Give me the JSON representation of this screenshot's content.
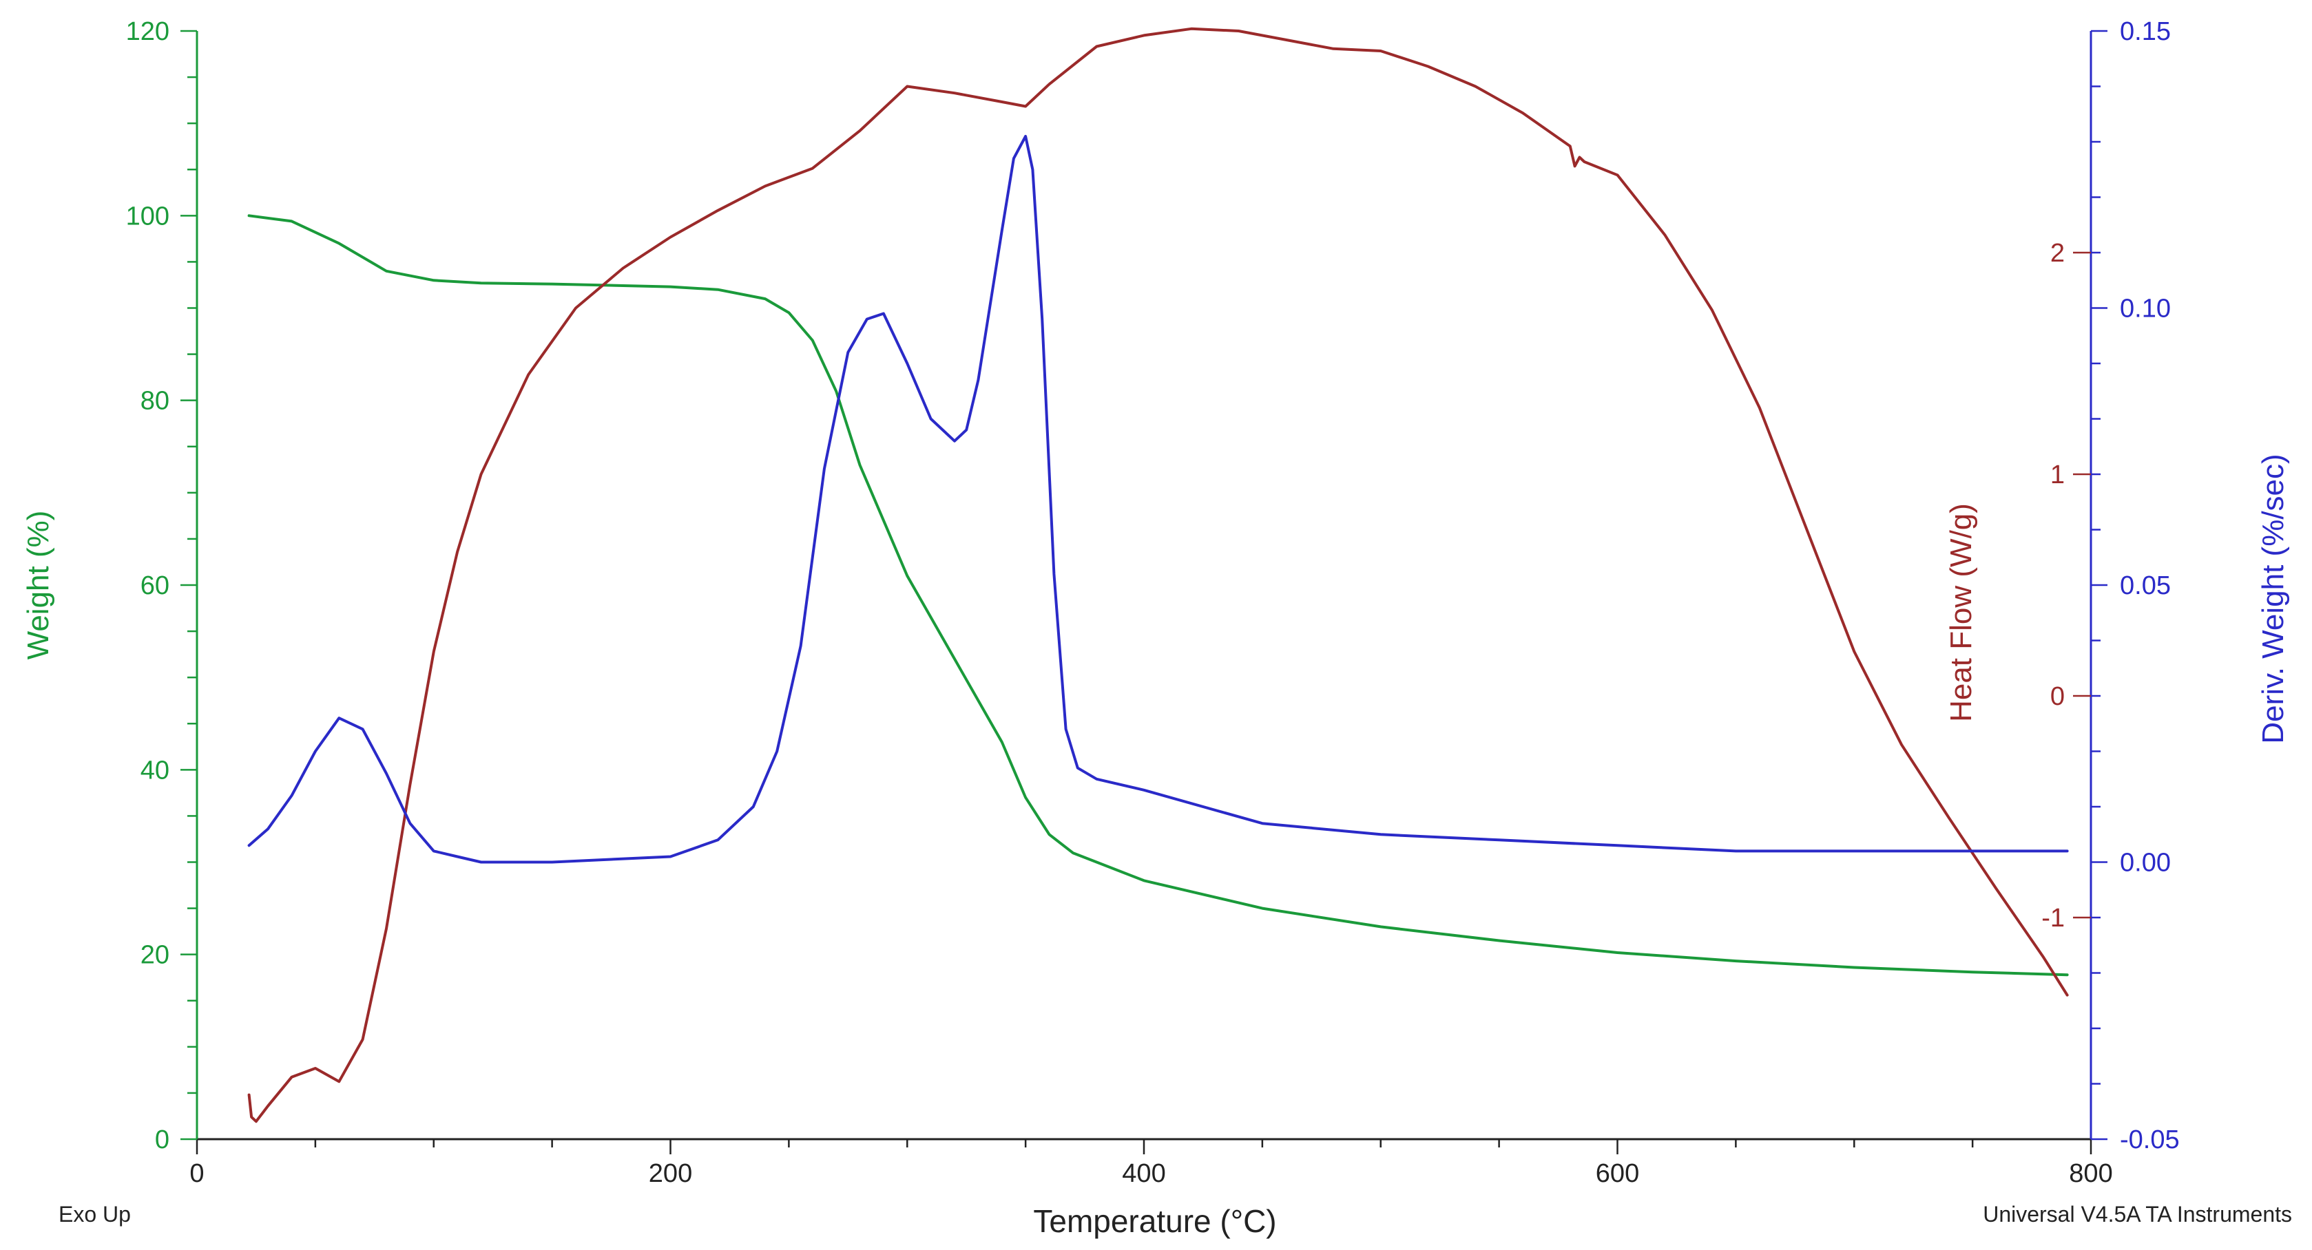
{
  "footer": {
    "left_note": "Exo Up",
    "right_note": "Universal V4.5A TA Instruments"
  },
  "colors": {
    "weight": "#1a9a3a",
    "heat_flow": "#9b2a2a",
    "deriv": "#2a2ac8",
    "axis_black": "#222222",
    "background": "#ffffff"
  },
  "chart_data": {
    "type": "line",
    "title": "",
    "xlabel": "Temperature (°C)",
    "xlim": [
      0,
      800
    ],
    "x_ticks": [
      0,
      200,
      400,
      600,
      800
    ],
    "x_tick_labels": [
      "0",
      "200",
      "400",
      "600",
      "800"
    ],
    "axes": {
      "weight": {
        "label": "Weight (%)",
        "side": "left",
        "ylim": [
          0,
          120
        ],
        "ticks": [
          0,
          20,
          40,
          60,
          80,
          100,
          120
        ],
        "tick_labels": [
          "0",
          "20",
          "40",
          "60",
          "80",
          "100",
          "120"
        ]
      },
      "heat_flow": {
        "label": "Heat Flow (W/g)",
        "side": "right-inner",
        "ylim": [
          -2.0,
          3.0
        ],
        "ticks": [
          -1,
          0,
          1,
          2
        ],
        "tick_labels": [
          "-1",
          "0",
          "1",
          "2"
        ]
      },
      "deriv": {
        "label": "Deriv. Weight (%/sec)",
        "side": "right",
        "ylim": [
          -0.05,
          0.15
        ],
        "ticks": [
          -0.05,
          0.0,
          0.05,
          0.1,
          0.15
        ],
        "tick_labels": [
          "-0.05",
          "0.00",
          "0.05",
          "0.10",
          "0.15"
        ]
      }
    },
    "grid": false,
    "legend": "none",
    "series": [
      {
        "id": "weight",
        "axis": "weight",
        "x": [
          22,
          40,
          60,
          80,
          100,
          120,
          150,
          200,
          220,
          240,
          250,
          260,
          270,
          280,
          300,
          320,
          340,
          350,
          360,
          370,
          380,
          400,
          450,
          500,
          550,
          600,
          650,
          700,
          750,
          790
        ],
        "y": [
          100,
          99.4,
          97,
          94,
          93,
          92.7,
          92.6,
          92.3,
          92,
          91,
          89.5,
          86.5,
          81,
          73,
          61,
          52,
          43,
          37,
          33,
          31,
          30,
          28,
          25,
          23,
          21.5,
          20.2,
          19.3,
          18.6,
          18.1,
          17.8
        ]
      },
      {
        "id": "heat_flow",
        "axis": "heat_flow",
        "x": [
          22,
          23,
          25,
          30,
          40,
          50,
          60,
          70,
          80,
          90,
          100,
          110,
          120,
          140,
          160,
          180,
          200,
          220,
          240,
          260,
          280,
          300,
          320,
          340,
          350,
          360,
          380,
          400,
          420,
          440,
          460,
          480,
          500,
          520,
          540,
          560,
          580,
          582,
          584,
          586,
          600,
          620,
          640,
          660,
          680,
          700,
          720,
          740,
          760,
          780,
          790
        ],
        "y": [
          -1.8,
          -1.9,
          -1.92,
          -1.85,
          -1.72,
          -1.68,
          -1.74,
          -1.55,
          -1.05,
          -0.4,
          0.2,
          0.65,
          1.0,
          1.45,
          1.75,
          1.93,
          2.07,
          2.19,
          2.3,
          2.38,
          2.55,
          2.75,
          2.72,
          2.68,
          2.66,
          2.76,
          2.93,
          2.98,
          3.01,
          3.0,
          2.96,
          2.92,
          2.91,
          2.84,
          2.75,
          2.63,
          2.48,
          2.39,
          2.43,
          2.41,
          2.35,
          2.08,
          1.74,
          1.3,
          0.75,
          0.2,
          -0.22,
          -0.55,
          -0.87,
          -1.18,
          -1.35
        ]
      },
      {
        "id": "deriv",
        "axis": "deriv",
        "x": [
          22,
          30,
          40,
          50,
          60,
          70,
          80,
          90,
          100,
          110,
          120,
          150,
          200,
          220,
          235,
          245,
          255,
          265,
          275,
          283,
          290,
          300,
          310,
          320,
          325,
          330,
          340,
          345,
          350,
          353,
          357,
          362,
          367,
          372,
          380,
          400,
          450,
          500,
          550,
          600,
          650,
          700,
          750,
          790
        ],
        "y": [
          0.003,
          0.006,
          0.012,
          0.02,
          0.026,
          0.024,
          0.016,
          0.007,
          0.002,
          0.001,
          0.0,
          0.0,
          0.001,
          0.004,
          0.01,
          0.02,
          0.039,
          0.071,
          0.092,
          0.098,
          0.099,
          0.09,
          0.08,
          0.076,
          0.078,
          0.087,
          0.114,
          0.127,
          0.131,
          0.125,
          0.098,
          0.052,
          0.024,
          0.017,
          0.015,
          0.013,
          0.007,
          0.005,
          0.004,
          0.003,
          0.002,
          0.002,
          0.002,
          0.002
        ]
      }
    ]
  }
}
